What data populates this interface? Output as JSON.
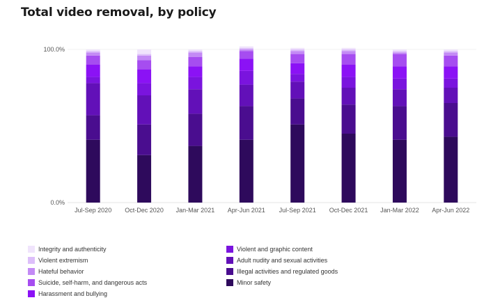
{
  "chart_data": {
    "type": "bar",
    "stacked": true,
    "title": "Total video removal, by policy",
    "xlabel": "",
    "ylabel": "",
    "ylim": [
      0,
      100
    ],
    "y_ticks": [
      "0.0%",
      "100.0%"
    ],
    "categories": [
      "Jul-Sep 2020",
      "Oct-Dec 2020",
      "Jan-Mar 2021",
      "Apr-Jun 2021",
      "Jul-Sep 2021",
      "Oct-Dec 2021",
      "Jan-Mar 2022",
      "Apr-Jun 2022"
    ],
    "series": [
      {
        "name": "Minor safety",
        "color": "#2e0a5c",
        "values": [
          41,
          31,
          37,
          41,
          51,
          45,
          41,
          43
        ]
      },
      {
        "name": "Illegal activities and regulated goods",
        "color": "#4a0d8f",
        "values": [
          16,
          20,
          21,
          22,
          17,
          19,
          22,
          22
        ]
      },
      {
        "name": "Adult nudity and sexual activities",
        "color": "#6210b8",
        "values": [
          21,
          19,
          16,
          14,
          11,
          11,
          11,
          10
        ]
      },
      {
        "name": "Violent and graphic content",
        "color": "#7a14de",
        "values": [
          4,
          8,
          8,
          9,
          5,
          7,
          7,
          6
        ]
      },
      {
        "name": "Harassment and bullying",
        "color": "#8b12f5",
        "values": [
          8,
          9,
          7,
          8,
          7,
          8,
          8,
          8
        ]
      },
      {
        "name": "Suicide, self-harm, and dangerous acts",
        "color": "#a64df0",
        "values": [
          6,
          6,
          6,
          5,
          6,
          7,
          8,
          7
        ]
      },
      {
        "name": "Hateful behavior",
        "color": "#c38af5",
        "values": [
          2,
          3,
          3,
          1,
          2,
          2,
          1,
          2
        ]
      },
      {
        "name": "Violent extremism",
        "color": "#ddbffa",
        "values": [
          1,
          1,
          1,
          1,
          1,
          1,
          1,
          1
        ]
      },
      {
        "name": "Integrity and authenticity",
        "color": "#f0e4fc",
        "values": [
          1,
          3,
          1,
          1,
          1,
          1,
          1,
          1
        ]
      }
    ],
    "legend_placement": "bottom",
    "grid": false
  }
}
